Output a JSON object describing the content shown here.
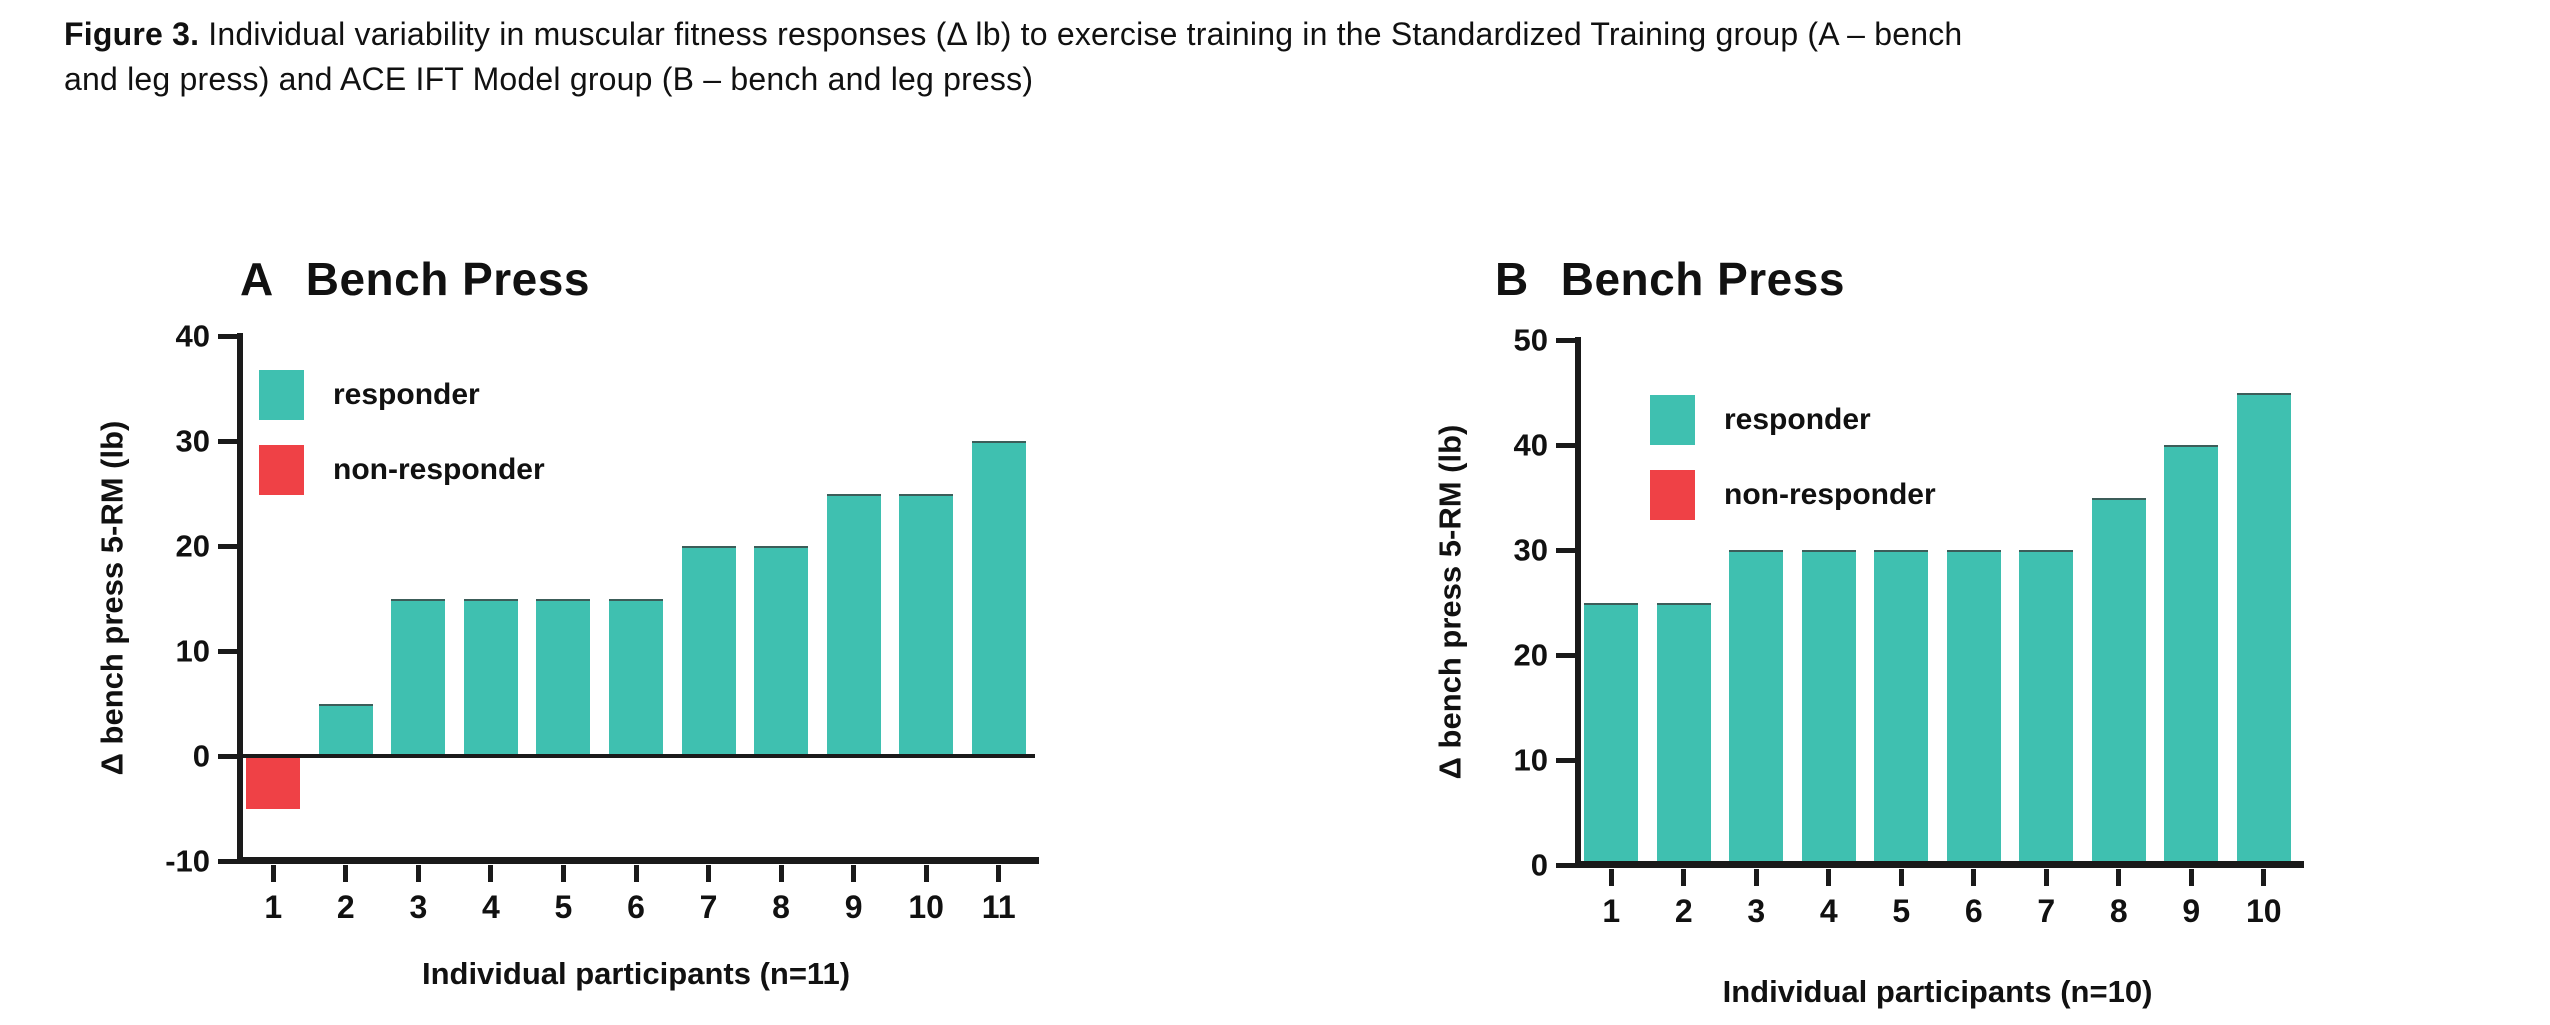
{
  "caption": {
    "label": "Figure 3.",
    "text": "Individual variability in muscular fitness responses (Δ lb) to exercise training in the Standardized Training group (A – bench and leg press) and ACE IFT Model group (B – bench and leg press)"
  },
  "legend": {
    "responder": "responder",
    "non_responder": "non-responder"
  },
  "colors": {
    "responder": "#3FC0B0",
    "non_responder": "#EF4146",
    "axis": "#1a1a1a"
  },
  "chart_data": [
    {
      "type": "bar",
      "panel": "A",
      "title": "Bench Press",
      "ylabel": "Δ bench press 5-RM (lb)",
      "xlabel": "Individual participants (n=11)",
      "categories": [
        "1",
        "2",
        "3",
        "4",
        "5",
        "6",
        "7",
        "8",
        "9",
        "10",
        "11"
      ],
      "values": [
        -5,
        5,
        15,
        15,
        15,
        15,
        20,
        20,
        25,
        25,
        30
      ],
      "point_classes": [
        "non-responder",
        "responder",
        "responder",
        "responder",
        "responder",
        "responder",
        "responder",
        "responder",
        "responder",
        "responder",
        "responder"
      ],
      "ylim": [
        -10,
        40
      ],
      "yticks": [
        40,
        30,
        20,
        10,
        0,
        -10
      ],
      "grid": false,
      "legend_position": "inside-top-left",
      "legend_entries": [
        "responder",
        "non-responder"
      ]
    },
    {
      "type": "bar",
      "panel": "B",
      "title": "Bench Press",
      "ylabel": "Δ bench press 5-RM (lb)",
      "xlabel": "Individual participants (n=10)",
      "categories": [
        "1",
        "2",
        "3",
        "4",
        "5",
        "6",
        "7",
        "8",
        "9",
        "10"
      ],
      "values": [
        25,
        25,
        30,
        30,
        30,
        30,
        30,
        35,
        40,
        45
      ],
      "point_classes": [
        "responder",
        "responder",
        "responder",
        "responder",
        "responder",
        "responder",
        "responder",
        "responder",
        "responder",
        "responder"
      ],
      "ylim": [
        0,
        50
      ],
      "yticks": [
        50,
        40,
        30,
        20,
        10,
        0
      ],
      "grid": false,
      "legend_position": "inside-top-left",
      "legend_entries": [
        "responder",
        "non-responder"
      ]
    }
  ]
}
